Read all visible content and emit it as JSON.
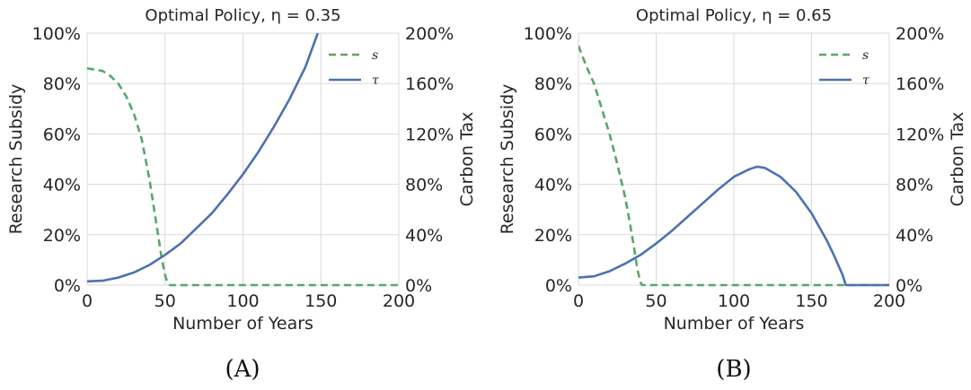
{
  "colors": {
    "s": "#55a868",
    "tau": "#4c72b0",
    "grid": "#d9d9d9",
    "text": "#262626"
  },
  "chart_data": [
    {
      "type": "line",
      "title": "Optimal Policy, η = 0.35",
      "xlabel": "Number of Years",
      "ylabel": "Research Subsidy",
      "y2label": "Carbon Tax",
      "panel_label": "(A)",
      "xlim": [
        0,
        200
      ],
      "ylim": [
        0,
        100
      ],
      "y2lim": [
        0,
        200
      ],
      "xticks": [
        "0",
        "50",
        "100",
        "150",
        "200"
      ],
      "yticks": [
        "0%",
        "20%",
        "40%",
        "60%",
        "80%",
        "100%"
      ],
      "y2ticks": [
        "0%",
        "40%",
        "80%",
        "120%",
        "160%",
        "200%"
      ],
      "grid": true,
      "legend": "top-right",
      "series": [
        {
          "name": "s",
          "axis": "left",
          "style": "dashed",
          "color": "#55a868",
          "x": [
            0,
            5,
            10,
            15,
            20,
            25,
            30,
            35,
            40,
            43,
            46,
            48,
            50,
            51,
            52,
            53,
            55,
            100,
            150,
            200
          ],
          "y": [
            86,
            85.5,
            85,
            83,
            80,
            75,
            68,
            58,
            42,
            30,
            18,
            10,
            4,
            2,
            0.5,
            0,
            0,
            0,
            0,
            0
          ]
        },
        {
          "name": "τ",
          "axis": "right",
          "style": "solid",
          "color": "#4c72b0",
          "x": [
            0,
            10,
            20,
            30,
            40,
            50,
            60,
            70,
            80,
            90,
            100,
            110,
            120,
            130,
            140,
            148
          ],
          "y": [
            3,
            3.5,
            6,
            10,
            16,
            24,
            33,
            45,
            57,
            72,
            88,
            106,
            126,
            148,
            173,
            200
          ]
        }
      ]
    },
    {
      "type": "line",
      "title": "Optimal Policy, η = 0.65",
      "xlabel": "Number of Years",
      "ylabel": "Research Subsidy",
      "y2label": "Carbon Tax",
      "panel_label": "(B)",
      "xlim": [
        0,
        200
      ],
      "ylim": [
        0,
        100
      ],
      "y2lim": [
        0,
        200
      ],
      "xticks": [
        "0",
        "50",
        "100",
        "150",
        "200"
      ],
      "yticks": [
        "0%",
        "20%",
        "40%",
        "60%",
        "80%",
        "100%"
      ],
      "y2ticks": [
        "0%",
        "40%",
        "80%",
        "120%",
        "160%",
        "200%"
      ],
      "grid": true,
      "legend": "top-right",
      "series": [
        {
          "name": "s",
          "axis": "left",
          "style": "dashed",
          "color": "#55a868",
          "x": [
            0,
            5,
            10,
            15,
            20,
            25,
            30,
            33,
            36,
            38,
            40,
            41,
            50,
            100,
            150,
            200
          ],
          "y": [
            95,
            87,
            80,
            70,
            60,
            48,
            35,
            25,
            14,
            6,
            1,
            0,
            0,
            0,
            0,
            0
          ]
        },
        {
          "name": "τ",
          "axis": "right",
          "style": "solid",
          "color": "#4c72b0",
          "x": [
            0,
            10,
            20,
            30,
            40,
            50,
            60,
            70,
            80,
            90,
            100,
            110,
            115,
            120,
            130,
            140,
            150,
            160,
            165,
            170,
            172,
            180,
            190,
            200
          ],
          "y": [
            6,
            7,
            11,
            17,
            24,
            33,
            43,
            54,
            65,
            76,
            86,
            92,
            94,
            93,
            86,
            74,
            57,
            35,
            22,
            8,
            0,
            0,
            0,
            0
          ]
        }
      ]
    }
  ]
}
